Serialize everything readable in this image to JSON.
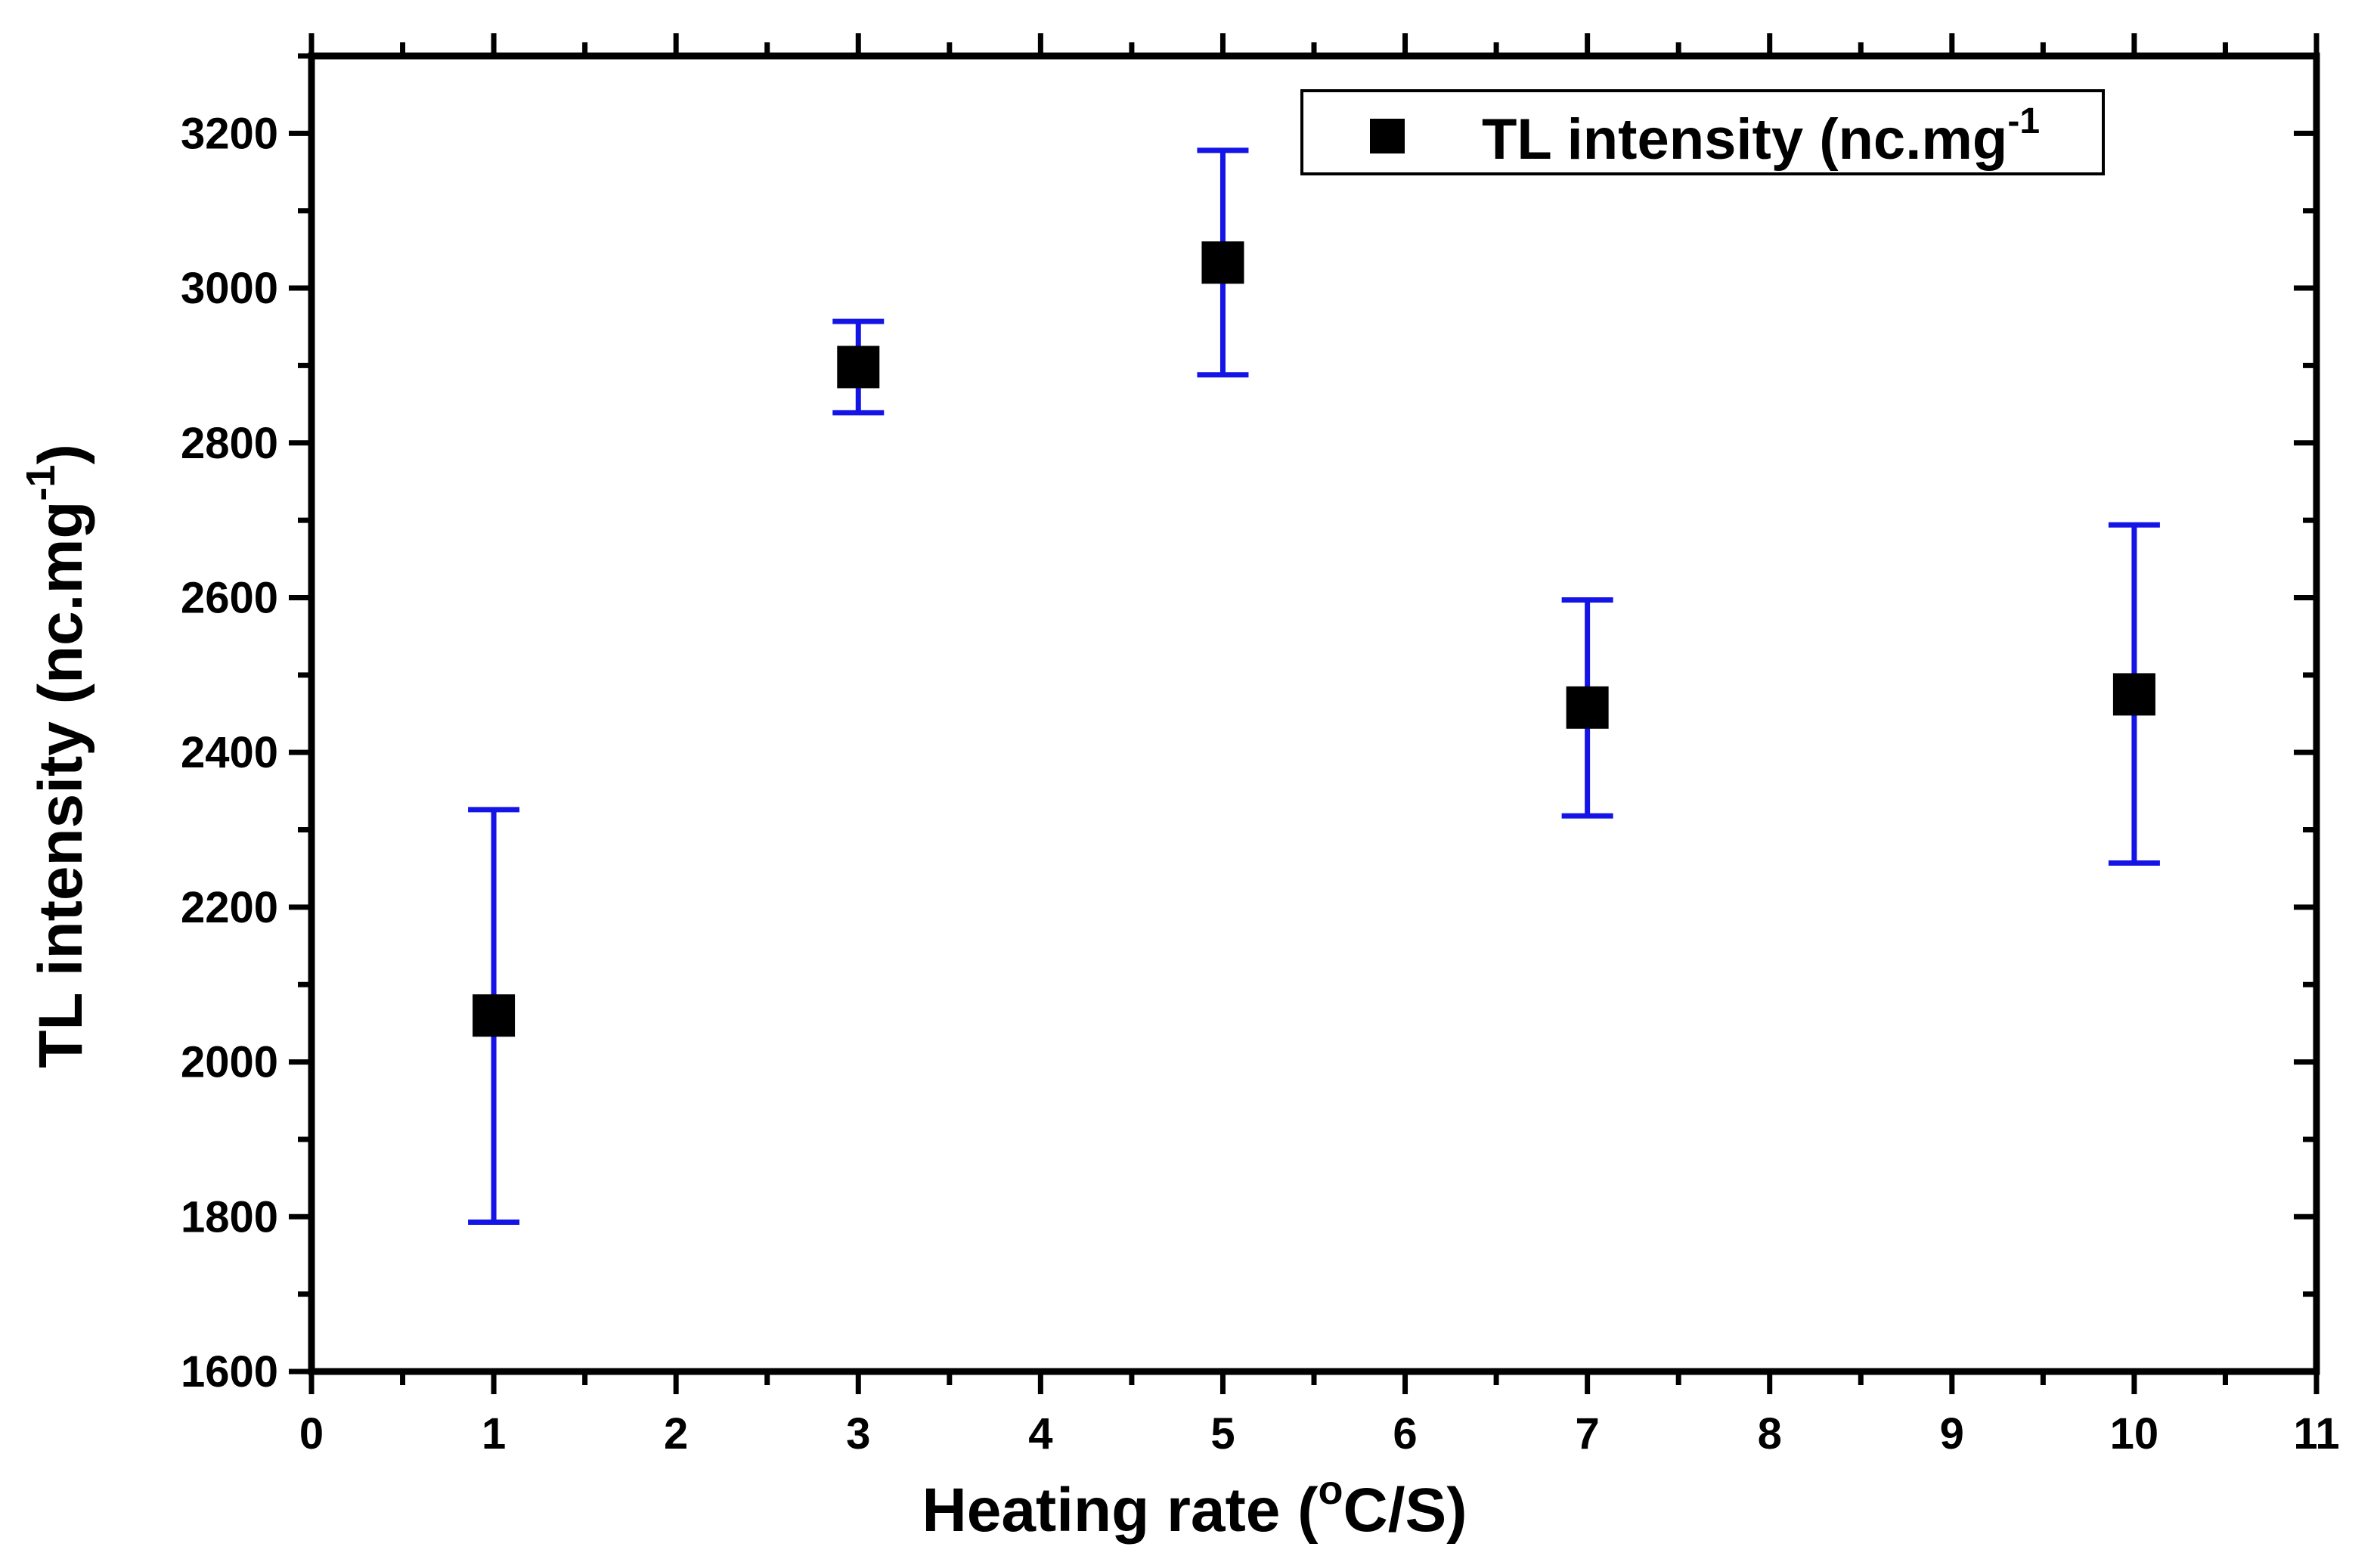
{
  "chart_data": {
    "type": "scatter",
    "title": "",
    "xlabel": "Heating rate (",
    "xlabel_sup": "o",
    "xlabel_tail": "C/S)",
    "ylabel": "TL intensity (nc.mg",
    "ylabel_sup": "-1",
    "ylabel_tail": ")",
    "xlim": [
      0,
      11
    ],
    "ylim": [
      1600,
      3300
    ],
    "x_ticks": [
      0,
      1,
      2,
      3,
      4,
      5,
      6,
      7,
      8,
      9,
      10,
      11
    ],
    "y_ticks": [
      1600,
      1800,
      2000,
      2200,
      2400,
      2600,
      2800,
      3000,
      3200
    ],
    "legend": {
      "label": "TL intensity (nc.mg",
      "label_sup": "-1",
      "position": "top-right"
    },
    "series": [
      {
        "name": "TL intensity (nc.mg-1",
        "marker": "square",
        "color": "#000000",
        "error_color": "#1414e6",
        "x": [
          1,
          3,
          5,
          7,
          10
        ],
        "y": [
          2060,
          2898,
          3033,
          2458,
          2475
        ],
        "err_low": [
          1793,
          2839,
          2888,
          2318,
          2257
        ],
        "err_high": [
          2326,
          2957,
          3178,
          2597,
          2694
        ]
      }
    ]
  }
}
